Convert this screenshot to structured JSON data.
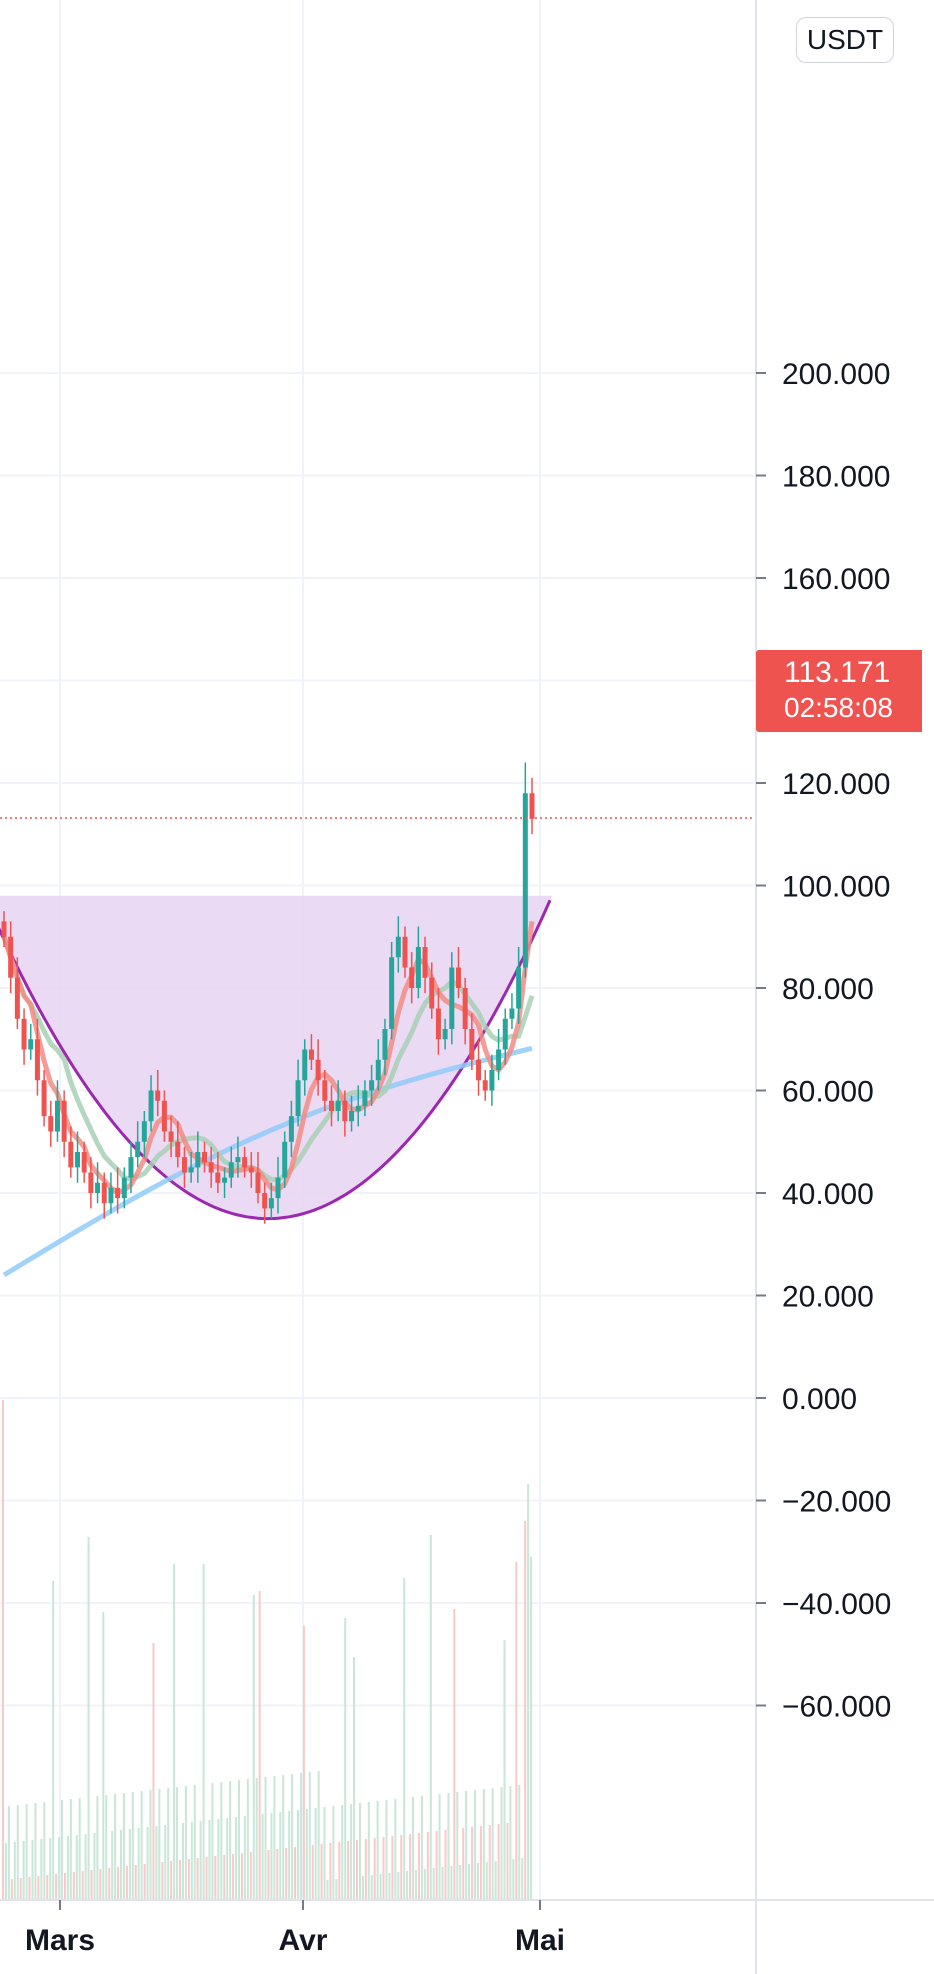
{
  "currency": "USDT",
  "last_price": {
    "value": "113.171",
    "countdown": "02:58:08",
    "color": "#ef5350"
  },
  "colors": {
    "up": "#26a69a",
    "down": "#ef5350",
    "ma_red": "#f28b82",
    "ma_green": "#a8cfb4",
    "ma_blue": "#90caf9",
    "cup_line": "#9c27b0",
    "cup_fill": "#e8d3f2",
    "vol_up": "#c9e6d8",
    "vol_down": "#f8c9c6"
  },
  "chart_data": {
    "type": "candlestick",
    "y_axis": {
      "ticks": [
        "200.000",
        "180.000",
        "160.000",
        "140.000",
        "120.000",
        "100.000",
        "80.000",
        "60.000",
        "40.000",
        "20.000",
        "0.000",
        "−20.000",
        "−40.000",
        "−60.000"
      ],
      "tick_values": [
        200,
        180,
        160,
        140,
        120,
        100,
        80,
        60,
        40,
        20,
        0,
        -20,
        -40,
        -60
      ],
      "range": [
        -80,
        210
      ]
    },
    "x_axis": {
      "ticks": [
        "Mars",
        "Avr",
        "Mai"
      ]
    },
    "grid": true,
    "series": [
      {
        "kind": "candles",
        "ohlc_close": [
          90,
          82,
          74,
          68,
          70,
          62,
          55,
          52,
          58,
          50,
          45,
          48,
          44,
          40,
          42,
          38,
          41,
          39,
          43,
          47,
          50,
          54,
          60,
          58,
          52,
          50,
          47,
          44,
          45,
          48,
          46,
          44,
          42,
          43,
          46,
          47,
          45,
          44,
          40,
          37,
          39,
          43,
          50,
          55,
          62,
          68,
          66,
          62,
          58,
          56,
          58,
          54,
          56,
          57,
          60,
          62,
          66,
          72,
          86,
          90,
          84,
          80,
          88,
          82,
          76,
          70,
          72,
          84,
          80,
          72,
          66,
          62,
          60,
          64,
          68,
          74,
          76,
          84,
          118,
          113
        ],
        "x_start": "2024-02-20",
        "x_end": "2024-05-01"
      },
      {
        "kind": "ma-red"
      },
      {
        "kind": "ma-green"
      },
      {
        "kind": "ma-blue"
      },
      {
        "kind": "cup-and-handle",
        "rim_level": 98,
        "bottom_level": 35
      }
    ],
    "current_price": 113.171
  }
}
